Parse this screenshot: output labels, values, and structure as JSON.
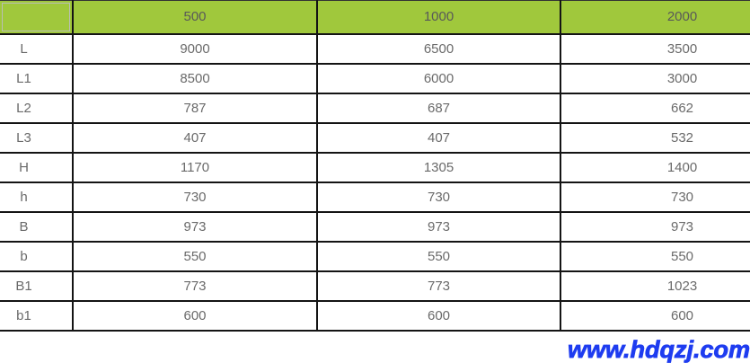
{
  "table": {
    "headers": [
      "",
      "500",
      "1000",
      "2000"
    ],
    "rows": [
      {
        "label": "L",
        "values": [
          "9000",
          "6500",
          "3500"
        ]
      },
      {
        "label": "L1",
        "values": [
          "8500",
          "6000",
          "3000"
        ]
      },
      {
        "label": "L2",
        "values": [
          "787",
          "687",
          "662"
        ]
      },
      {
        "label": "L3",
        "values": [
          "407",
          "407",
          "532"
        ]
      },
      {
        "label": "H",
        "values": [
          "1170",
          "1305",
          "1400"
        ]
      },
      {
        "label": "h",
        "values": [
          "730",
          "730",
          "730"
        ]
      },
      {
        "label": "B",
        "values": [
          "973",
          "973",
          "973"
        ]
      },
      {
        "label": "b",
        "values": [
          "550",
          "550",
          "550"
        ]
      },
      {
        "label": "B1",
        "values": [
          "773",
          "773",
          "1023"
        ]
      },
      {
        "label": "b1",
        "values": [
          "600",
          "600",
          "600"
        ]
      }
    ]
  },
  "watermark": {
    "text": "www.hdqzj.com"
  },
  "colors": {
    "header_bg": "#a0c83c",
    "border": "#141414",
    "header_text": "#595959",
    "cell_text": "#6a6a6a",
    "watermark": "#1e3cf0"
  }
}
